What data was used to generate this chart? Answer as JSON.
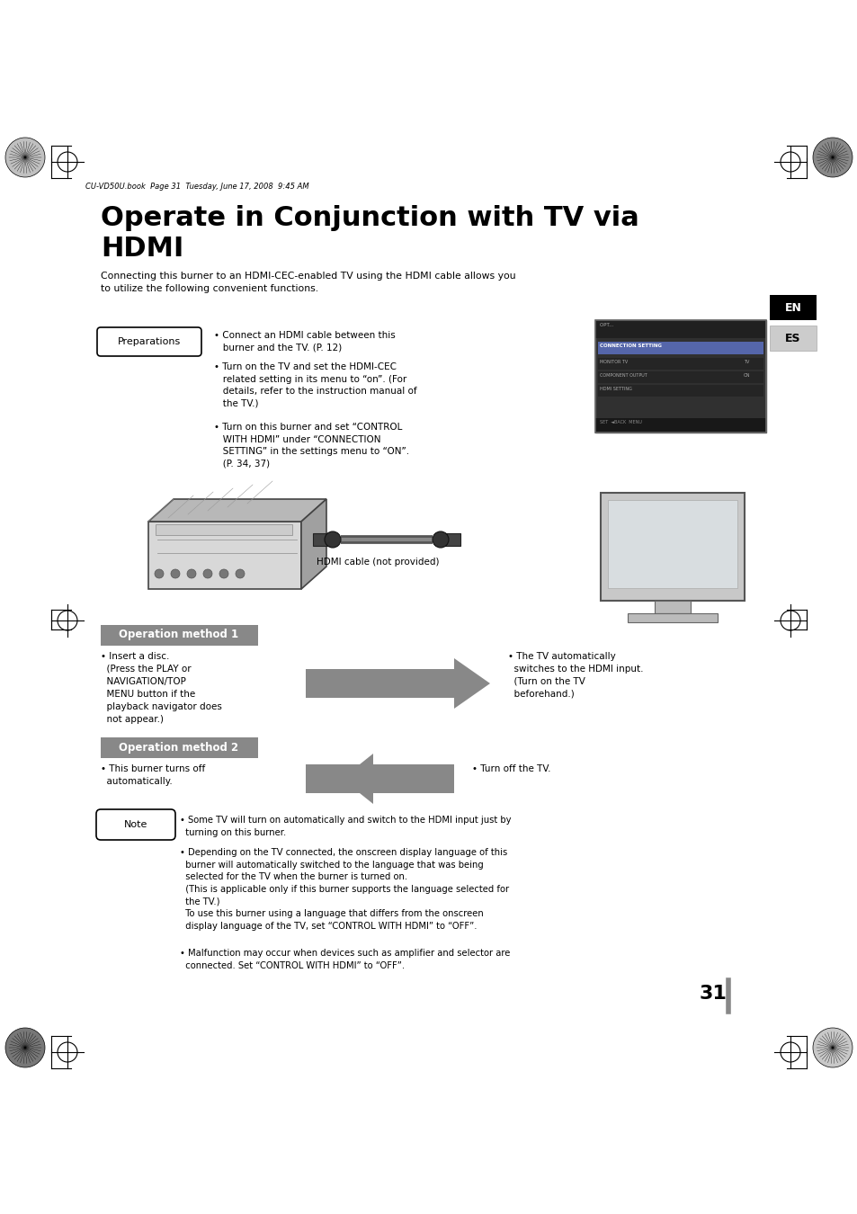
{
  "bg_color": "#ffffff",
  "page_width": 9.54,
  "page_height": 13.5,
  "title_line1": "Operate in Conjunction with TV via",
  "title_line2": "HDMI",
  "subtitle": "Connecting this burner to an HDMI-CEC-enabled TV using the HDMI cable allows you\nto utilize the following convenient functions.",
  "header_text": "CU-VD50U.book  Page 31  Tuesday, June 17, 2008  9:45 AM",
  "preparations_label": "Preparations",
  "prep_bullet1": "• Connect an HDMI cable between this\n   burner and the TV. (P. 12)",
  "prep_bullet2": "• Turn on the TV and set the HDMI-CEC\n   related setting in its menu to “on”. (For\n   details, refer to the instruction manual of\n   the TV.)",
  "prep_bullet3": "• Turn on this burner and set “CONTROL\n   WITH HDMI” under “CONNECTION\n   SETTING” in the settings menu to “ON”.\n   (P. 34, 37)",
  "hdmi_cable_label": "HDMI cable (not provided)",
  "op1_title": "Operation method 1",
  "op1_left": "• Insert a disc.\n  (Press the PLAY or\n  NAVIGATION/TOP\n  MENU button if the\n  playback navigator does\n  not appear.)",
  "op1_right": "• The TV automatically\n  switches to the HDMI input.\n  (Turn on the TV\n  beforehand.)",
  "op2_title": "Operation method 2",
  "op2_left": "• This burner turns off\n  automatically.",
  "op2_right": "• Turn off the TV.",
  "note_label": "Note",
  "note_b1": "• Some TV will turn on automatically and switch to the HDMI input just by\n  turning on this burner.",
  "note_b2": "• Depending on the TV connected, the onscreen display language of this\n  burner will automatically switched to the language that was being\n  selected for the TV when the burner is turned on.\n  (This is applicable only if this burner supports the language selected for\n  the TV.)\n  To use this burner using a language that differs from the onscreen\n  display language of the TV, set “CONTROL WITH HDMI” to “OFF”.",
  "note_b3": "• Malfunction may occur when devices such as amplifier and selector are\n  connected. Set “CONTROL WITH HDMI” to “OFF”.",
  "page_num": "31",
  "en_label": "EN",
  "es_label": "ES"
}
